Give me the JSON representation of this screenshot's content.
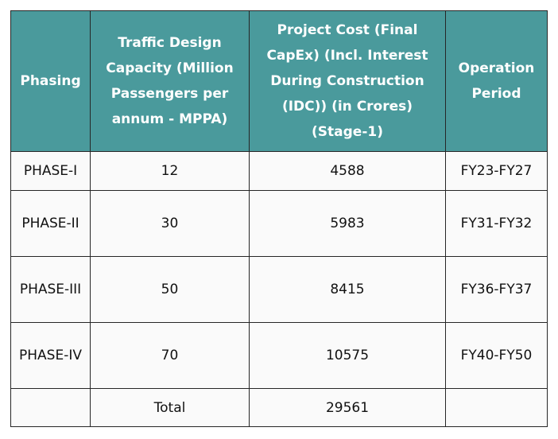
{
  "table": {
    "headers": [
      "Phasing",
      "Traffic Design Capacity (Million Passengers per annum - MPPA)",
      "Project Cost (Final CapEx) (Incl. Interest During Construction (IDC)) (in Crores) (Stage-1)",
      "Operation Period"
    ],
    "rows": [
      [
        "PHASE-I",
        "12",
        "4588",
        "FY23-FY27"
      ],
      [
        "PHASE-II",
        "30",
        "5983",
        "FY31-FY32"
      ],
      [
        "PHASE-III",
        "50",
        "8415",
        "FY36-FY37"
      ],
      [
        "PHASE-IV",
        "70",
        "10575",
        "FY40-FY50"
      ],
      [
        "",
        "Total",
        "29561",
        ""
      ]
    ]
  },
  "colors": {
    "header_bg": "#4a9a9c",
    "header_text": "#ffffff",
    "cell_bg": "#fafafa",
    "border": "#262626"
  }
}
